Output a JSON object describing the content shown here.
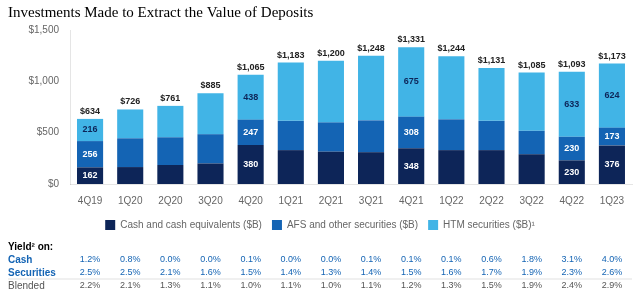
{
  "chart_data": {
    "type": "bar",
    "title": "Investments Made to Extract the Value of Deposits",
    "categories": [
      "4Q19",
      "1Q20",
      "2Q20",
      "3Q20",
      "4Q20",
      "1Q21",
      "2Q21",
      "3Q21",
      "4Q21",
      "1Q22",
      "2Q22",
      "3Q22",
      "4Q22",
      "1Q23"
    ],
    "stacked": true,
    "series": [
      {
        "name": "Cash and cash equivalents ($B)",
        "color": "#0d2558",
        "values": [
          162,
          165,
          185,
          200,
          380,
          330,
          315,
          310,
          348,
          330,
          330,
          290,
          230,
          376
        ],
        "value_labels": [
          "162",
          null,
          null,
          null,
          "380",
          null,
          null,
          null,
          "348",
          null,
          null,
          null,
          "230",
          "376"
        ]
      },
      {
        "name": "AFS and other securities ($B)",
        "color": "#1464b4",
        "values": [
          256,
          280,
          270,
          285,
          247,
          285,
          285,
          310,
          308,
          300,
          285,
          228,
          230,
          173
        ],
        "value_labels": [
          "256",
          null,
          null,
          null,
          "247",
          null,
          null,
          null,
          "308",
          null,
          null,
          null,
          "230",
          "173"
        ]
      },
      {
        "name": "HTM securities ($B)¹",
        "color": "#41b4e6",
        "values": [
          216,
          281,
          306,
          400,
          438,
          568,
          600,
          628,
          675,
          614,
          516,
          567,
          633,
          624
        ],
        "value_labels": [
          "216",
          null,
          null,
          null,
          "438",
          null,
          null,
          null,
          "675",
          null,
          null,
          null,
          "633",
          "624"
        ]
      }
    ],
    "totals": [
      634,
      726,
      761,
      885,
      1065,
      1183,
      1200,
      1248,
      1331,
      1244,
      1131,
      1085,
      1093,
      1173
    ],
    "total_labels": [
      "$634",
      "$726",
      "$761",
      "$885",
      "$1,065",
      "$1,183",
      "$1,200",
      "$1,248",
      "$1,331",
      "$1,244",
      "$1,131",
      "$1,085",
      "$1,093",
      "$1,173"
    ],
    "data_labels": true,
    "ylim": [
      0,
      1500
    ],
    "yticks": [
      {
        "value": 0,
        "label": "$0"
      },
      {
        "value": 500,
        "label": "$500"
      },
      {
        "value": 1000,
        "label": "$1,000"
      },
      {
        "value": 1500,
        "label": "$1,500"
      }
    ],
    "grid": false,
    "legend": "bottom",
    "table": {
      "title": "Yield² on:",
      "rows": [
        {
          "name": "Cash",
          "color": "#1464b4",
          "values": [
            1.2,
            0.8,
            0.0,
            0.0,
            0.1,
            0.0,
            0.0,
            0.1,
            0.1,
            0.1,
            0.6,
            1.8,
            3.1,
            4.0
          ],
          "value_labels": [
            "1.2%",
            "0.8%",
            "0.0%",
            "0.0%",
            "0.1%",
            "0.0%",
            "0.0%",
            "0.1%",
            "0.1%",
            "0.1%",
            "0.6%",
            "1.8%",
            "3.1%",
            "4.0%"
          ]
        },
        {
          "name": "Securities",
          "color": "#1464b4",
          "values": [
            2.5,
            2.5,
            2.1,
            1.6,
            1.5,
            1.4,
            1.3,
            1.4,
            1.5,
            1.6,
            1.7,
            1.9,
            2.3,
            2.6
          ],
          "value_labels": [
            "2.5%",
            "2.5%",
            "2.1%",
            "1.6%",
            "1.5%",
            "1.4%",
            "1.3%",
            "1.4%",
            "1.5%",
            "1.6%",
            "1.7%",
            "1.9%",
            "2.3%",
            "2.6%"
          ]
        },
        {
          "name": "Blended",
          "color": "#555555",
          "values": [
            2.2,
            2.1,
            1.3,
            1.1,
            1.0,
            1.1,
            1.0,
            1.1,
            1.2,
            1.3,
            1.5,
            1.9,
            2.4,
            2.9
          ],
          "value_labels": [
            "2.2%",
            "2.1%",
            "1.3%",
            "1.1%",
            "1.0%",
            "1.1%",
            "1.0%",
            "1.1%",
            "1.2%",
            "1.3%",
            "1.5%",
            "1.9%",
            "2.4%",
            "2.9%"
          ]
        }
      ]
    }
  }
}
